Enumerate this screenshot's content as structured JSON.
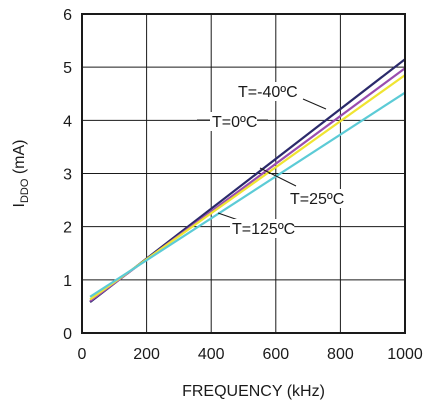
{
  "chart_data": {
    "type": "line",
    "xlabel": "FREQUENCY (kHz)",
    "ylabel_main": "I",
    "ylabel_sub": "DDO",
    "ylabel_unit": " (mA)",
    "xlim": [
      0,
      1000
    ],
    "ylim": [
      0,
      6
    ],
    "x_ticks": [
      "0",
      "200",
      "400",
      "600",
      "800",
      "1000"
    ],
    "y_ticks": [
      "0",
      "1",
      "2",
      "3",
      "4",
      "5",
      "6"
    ],
    "grid": true,
    "series": [
      {
        "name": "T=-40ºC",
        "color": "#2b2a6b",
        "x": [
          25,
          1000
        ],
        "y": [
          0.58,
          5.15
        ]
      },
      {
        "name": "T=0ºC",
        "color": "#9a4db0",
        "x": [
          25,
          1000
        ],
        "y": [
          0.6,
          4.98
        ]
      },
      {
        "name": "T=25ºC",
        "color": "#f0e432",
        "x": [
          25,
          1000
        ],
        "y": [
          0.63,
          4.85
        ]
      },
      {
        "name": "T=125ºC",
        "color": "#5ccbd6",
        "x": [
          25,
          1000
        ],
        "y": [
          0.68,
          4.52
        ]
      }
    ],
    "annotations": [
      {
        "text": "T=-40ºC",
        "series": 0
      },
      {
        "text": "T=0ºC",
        "series": 1
      },
      {
        "text": "T=25ºC",
        "series": 2
      },
      {
        "text": "T=125ºC",
        "series": 3
      }
    ]
  }
}
